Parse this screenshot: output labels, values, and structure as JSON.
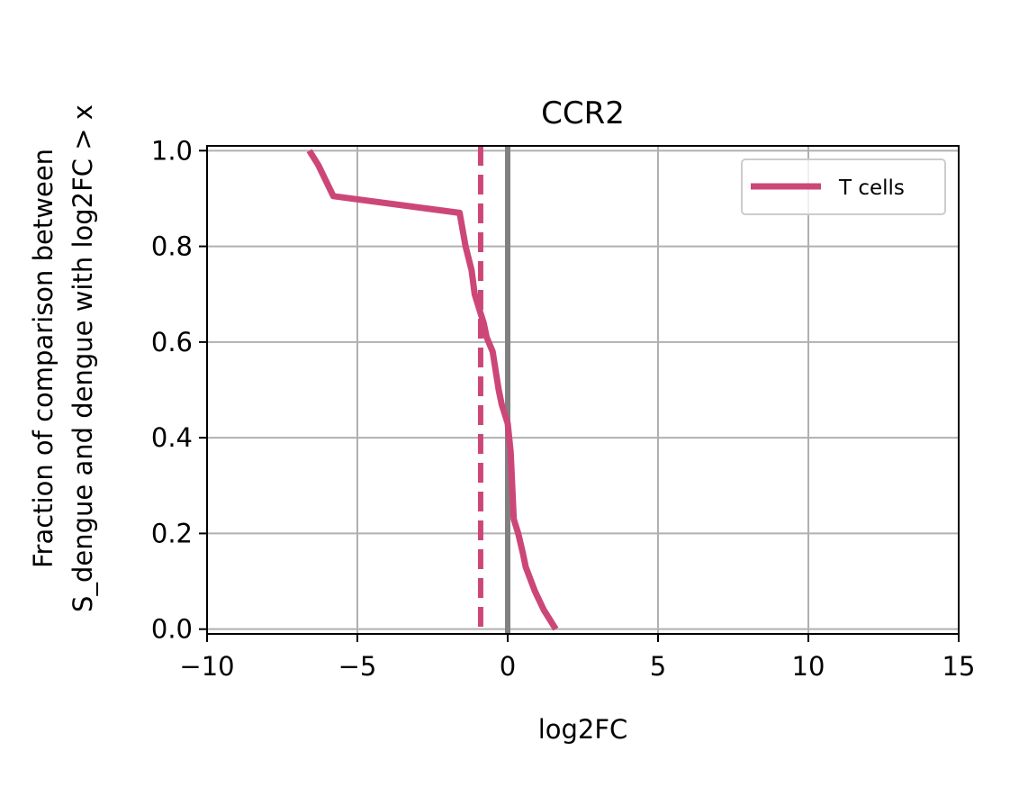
{
  "chart_data": {
    "type": "line",
    "title": "CCR2",
    "xlabel": "log2FC",
    "ylabel_lines": [
      "Fraction of comparison between",
      "S_dengue and dengue with log2FC > x"
    ],
    "xlim": [
      -10,
      15
    ],
    "ylim": [
      -0.01,
      1.01
    ],
    "xticks": [
      -10,
      -5,
      0,
      5,
      10,
      15
    ],
    "xtick_labels": [
      "−10",
      "−5",
      "0",
      "5",
      "10",
      "15"
    ],
    "yticks": [
      0.0,
      0.2,
      0.4,
      0.6,
      0.8,
      1.0
    ],
    "ytick_labels": [
      "0.0",
      "0.2",
      "0.4",
      "0.6",
      "0.8",
      "1.0"
    ],
    "grid": true,
    "legend_position": "top-right",
    "reference_lines": [
      {
        "kind": "vertical",
        "x": 0,
        "style": "solid",
        "color": "#808080"
      },
      {
        "kind": "vertical",
        "x": -0.9,
        "style": "dashed",
        "color": "#cc4778"
      }
    ],
    "series": [
      {
        "name": "T cells",
        "color": "#cc4778",
        "x": [
          -6.6,
          -6.3,
          -5.8,
          -1.6,
          -1.4,
          -1.2,
          -1.1,
          -0.9,
          -0.8,
          -0.7,
          -0.5,
          -0.3,
          -0.2,
          0.0,
          0.1,
          0.15,
          0.2,
          0.35,
          0.5,
          0.6,
          0.9,
          1.2,
          1.6
        ],
        "y": [
          1.0,
          0.97,
          0.905,
          0.87,
          0.8,
          0.75,
          0.7,
          0.66,
          0.64,
          0.61,
          0.58,
          0.5,
          0.47,
          0.43,
          0.37,
          0.3,
          0.23,
          0.2,
          0.16,
          0.13,
          0.08,
          0.04,
          0.0
        ]
      }
    ]
  }
}
